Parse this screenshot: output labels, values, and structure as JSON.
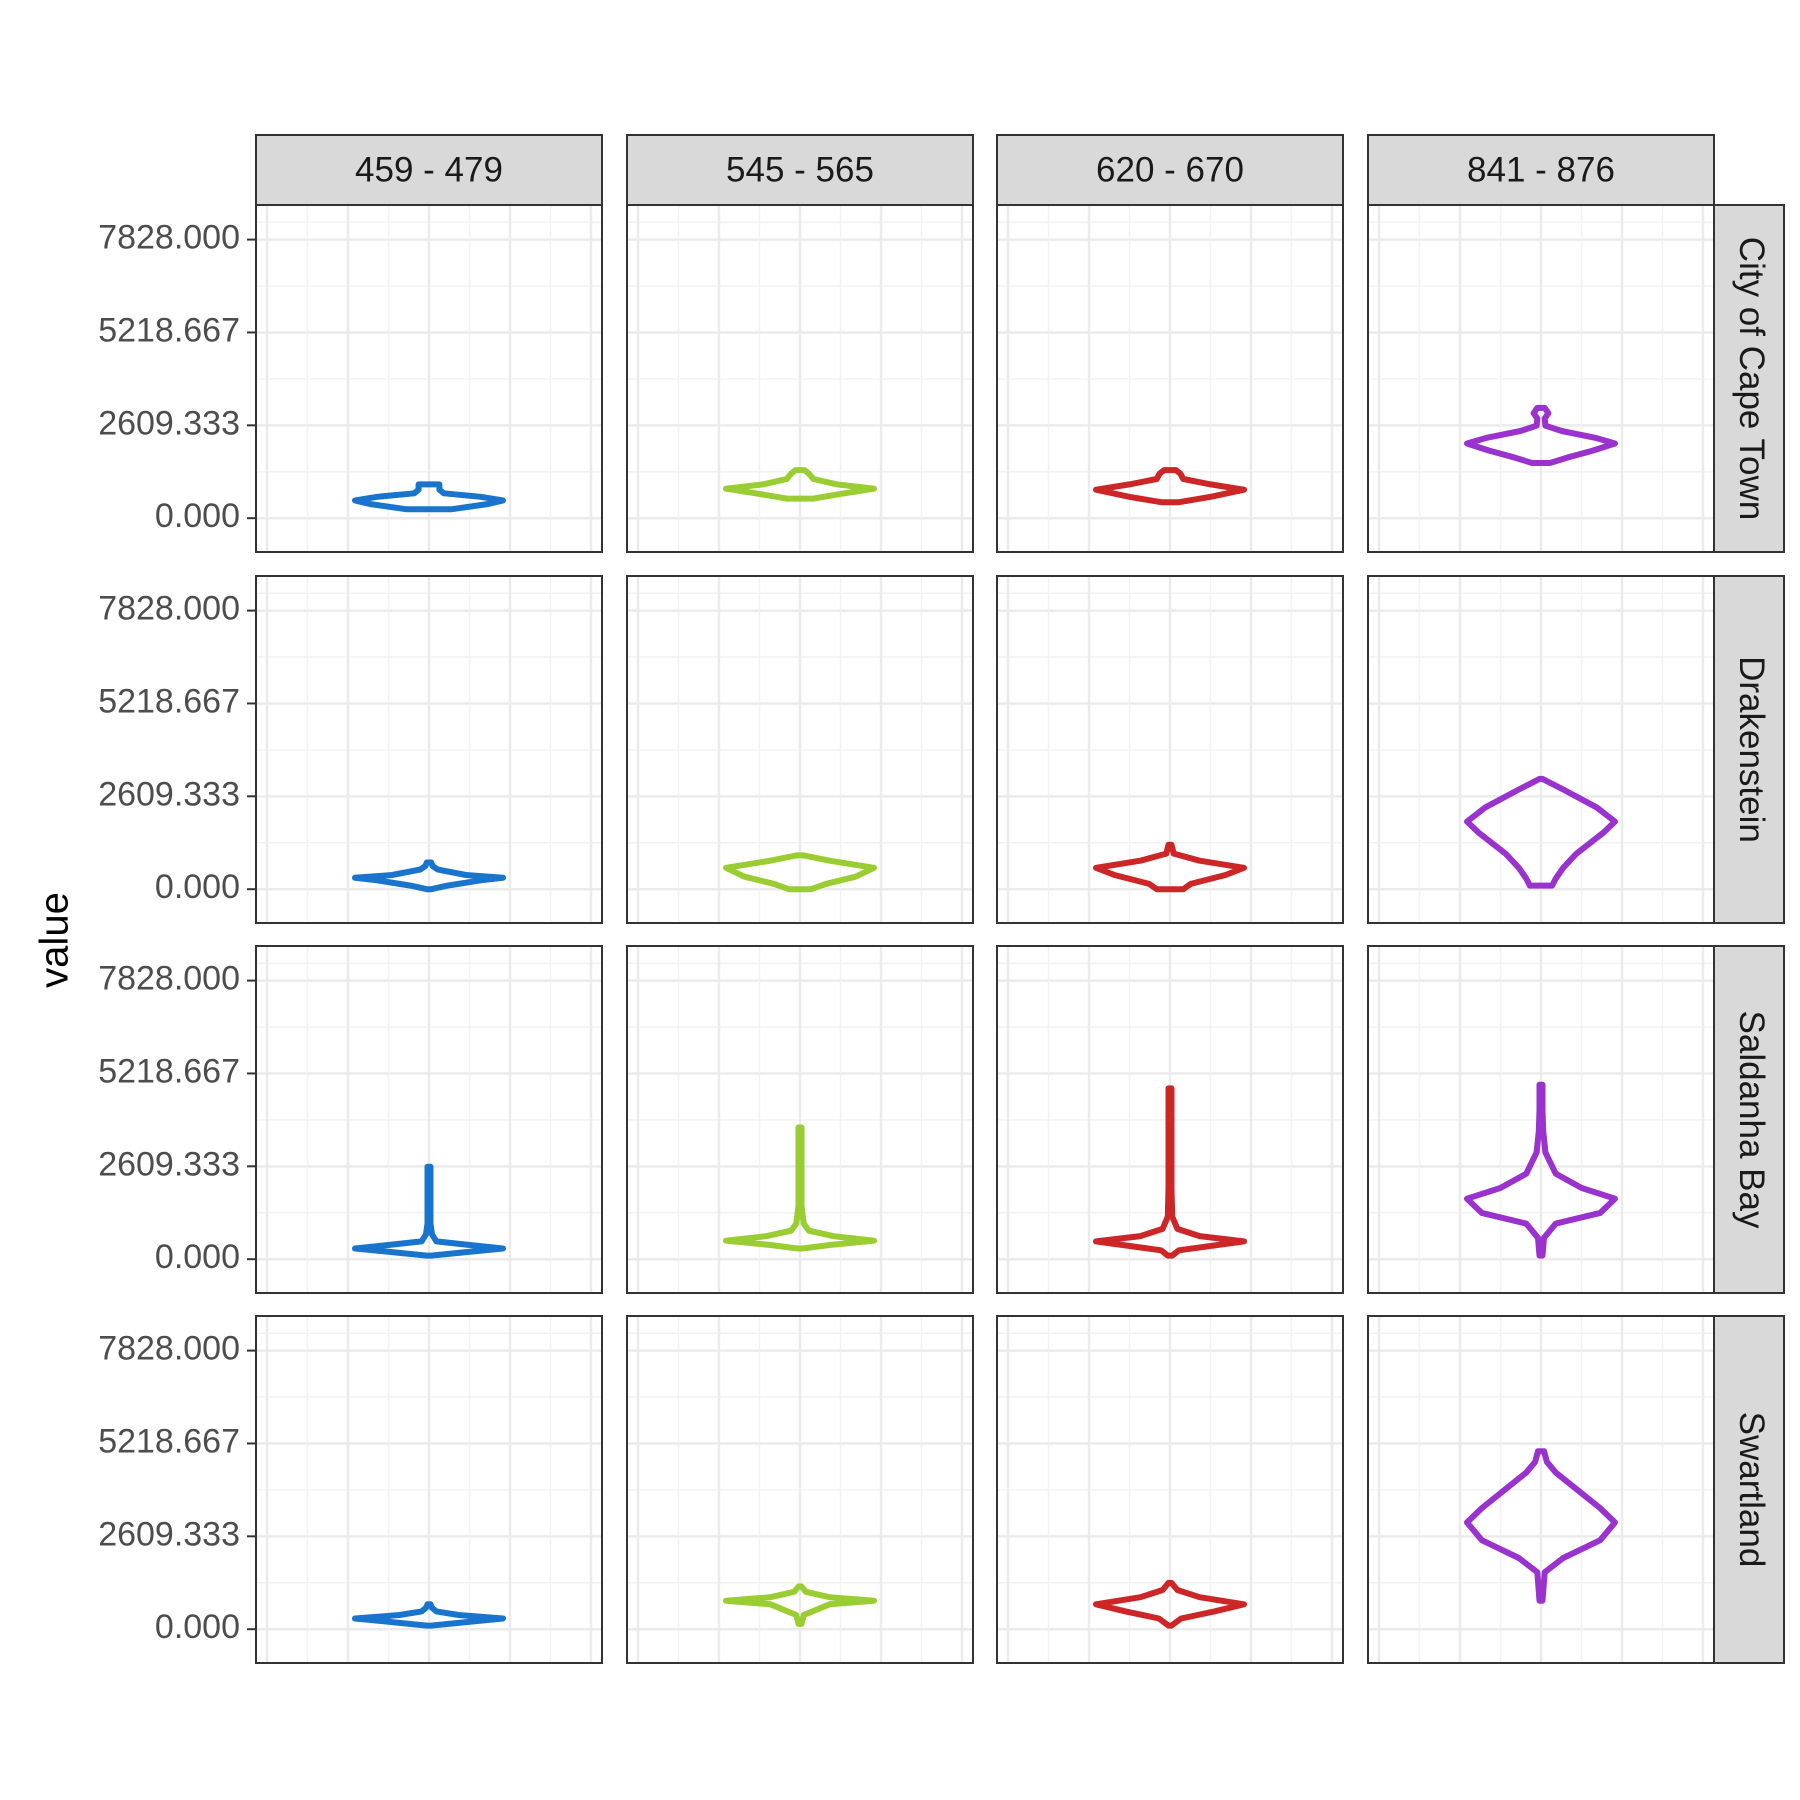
{
  "chart_data": {
    "type": "violin",
    "ylabel": "value",
    "y_ticks": [
      "0.000",
      "2609.333",
      "5218.667",
      "7828.000"
    ],
    "y_tick_values": [
      0,
      2609.333,
      5218.667,
      7828
    ],
    "ylim": [
      -950,
      8800
    ],
    "grid": true,
    "columns": [
      "459 - 479",
      "545 - 565",
      "620 - 670",
      "841 - 876"
    ],
    "rows": [
      "City of Cape Town",
      "Drakenstein",
      "Saldanha Bay",
      "Swartland"
    ],
    "column_colors": [
      "#1874CD",
      "#9ACD32",
      "#CD2626",
      "#9A32CD"
    ],
    "violins": [
      [
        {
          "bottom": 250,
          "top": 950,
          "points": [
            [
              250,
              0.3
            ],
            [
              400,
              0.8
            ],
            [
              500,
              1.0
            ],
            [
              600,
              0.7
            ],
            [
              700,
              0.2
            ],
            [
              800,
              0.14
            ],
            [
              950,
              0.14
            ]
          ]
        },
        {
          "bottom": 550,
          "top": 1350,
          "points": [
            [
              550,
              0.18
            ],
            [
              700,
              0.6
            ],
            [
              830,
              1.0
            ],
            [
              950,
              0.5
            ],
            [
              1100,
              0.18
            ],
            [
              1250,
              0.12
            ],
            [
              1350,
              0.06
            ]
          ]
        },
        {
          "bottom": 450,
          "top": 1350,
          "points": [
            [
              450,
              0.12
            ],
            [
              600,
              0.55
            ],
            [
              800,
              1.0
            ],
            [
              950,
              0.55
            ],
            [
              1100,
              0.18
            ],
            [
              1250,
              0.14
            ],
            [
              1350,
              0.08
            ]
          ]
        },
        {
          "bottom": 1550,
          "top": 3100,
          "points": [
            [
              1550,
              0.12
            ],
            [
              1700,
              0.35
            ],
            [
              1900,
              0.7
            ],
            [
              2100,
              1.0
            ],
            [
              2250,
              0.75
            ],
            [
              2450,
              0.28
            ],
            [
              2600,
              0.06
            ],
            [
              2800,
              0.05
            ],
            [
              2950,
              0.1
            ],
            [
              3100,
              0.05
            ]
          ]
        }
      ],
      [
        {
          "bottom": 0,
          "top": 750,
          "points": [
            [
              0,
              0.03
            ],
            [
              100,
              0.25
            ],
            [
              250,
              0.7
            ],
            [
              320,
              1.0
            ],
            [
              400,
              0.5
            ],
            [
              550,
              0.12
            ],
            [
              650,
              0.05
            ],
            [
              750,
              0.03
            ]
          ]
        },
        {
          "bottom": 0,
          "top": 950,
          "points": [
            [
              0,
              0.15
            ],
            [
              150,
              0.35
            ],
            [
              350,
              0.75
            ],
            [
              600,
              1.0
            ],
            [
              800,
              0.4
            ],
            [
              950,
              0.05
            ]
          ]
        },
        {
          "bottom": 0,
          "top": 1250,
          "points": [
            [
              0,
              0.18
            ],
            [
              150,
              0.28
            ],
            [
              400,
              0.75
            ],
            [
              600,
              1.0
            ],
            [
              800,
              0.4
            ],
            [
              1000,
              0.05
            ],
            [
              1250,
              0.02
            ]
          ]
        },
        {
          "bottom": 100,
          "top": 3100,
          "points": [
            [
              100,
              0.15
            ],
            [
              300,
              0.2
            ],
            [
              600,
              0.3
            ],
            [
              1000,
              0.48
            ],
            [
              1600,
              0.85
            ],
            [
              1900,
              1.0
            ],
            [
              2300,
              0.75
            ],
            [
              2800,
              0.3
            ],
            [
              3100,
              0.02
            ]
          ]
        }
      ],
      [
        {
          "bottom": 100,
          "top": 2600,
          "points": [
            [
              100,
              0.03
            ],
            [
              200,
              0.5
            ],
            [
              300,
              1.0
            ],
            [
              400,
              0.55
            ],
            [
              500,
              0.1
            ],
            [
              700,
              0.04
            ],
            [
              1000,
              0.02
            ],
            [
              1500,
              0.02
            ],
            [
              2600,
              0.02
            ]
          ]
        },
        {
          "bottom": 300,
          "top": 3700,
          "points": [
            [
              300,
              0.03
            ],
            [
              400,
              0.4
            ],
            [
              520,
              1.0
            ],
            [
              650,
              0.45
            ],
            [
              800,
              0.12
            ],
            [
              1000,
              0.05
            ],
            [
              1500,
              0.02
            ],
            [
              2500,
              0.02
            ],
            [
              3700,
              0.02
            ]
          ]
        },
        {
          "bottom": 100,
          "top": 4800,
          "points": [
            [
              100,
              0.03
            ],
            [
              250,
              0.12
            ],
            [
              500,
              1.0
            ],
            [
              650,
              0.4
            ],
            [
              850,
              0.1
            ],
            [
              1200,
              0.03
            ],
            [
              2000,
              0.02
            ],
            [
              4800,
              0.02
            ]
          ]
        },
        {
          "bottom": 100,
          "top": 4900,
          "points": [
            [
              100,
              0.02
            ],
            [
              600,
              0.04
            ],
            [
              1000,
              0.2
            ],
            [
              1300,
              0.8
            ],
            [
              1700,
              1.0
            ],
            [
              2000,
              0.55
            ],
            [
              2400,
              0.2
            ],
            [
              3000,
              0.06
            ],
            [
              3600,
              0.03
            ],
            [
              4200,
              0.02
            ],
            [
              4900,
              0.02
            ]
          ]
        }
      ],
      [
        {
          "bottom": 100,
          "top": 700,
          "points": [
            [
              100,
              0.03
            ],
            [
              200,
              0.5
            ],
            [
              300,
              1.0
            ],
            [
              400,
              0.4
            ],
            [
              500,
              0.1
            ],
            [
              600,
              0.04
            ],
            [
              700,
              0.02
            ]
          ]
        },
        {
          "bottom": 150,
          "top": 1200,
          "points": [
            [
              150,
              0.02
            ],
            [
              400,
              0.05
            ],
            [
              700,
              0.4
            ],
            [
              800,
              1.0
            ],
            [
              900,
              0.4
            ],
            [
              1050,
              0.08
            ],
            [
              1200,
              0.02
            ]
          ]
        },
        {
          "bottom": 100,
          "top": 1300,
          "points": [
            [
              100,
              0.02
            ],
            [
              300,
              0.15
            ],
            [
              500,
              0.6
            ],
            [
              700,
              1.0
            ],
            [
              900,
              0.4
            ],
            [
              1100,
              0.1
            ],
            [
              1300,
              0.02
            ]
          ]
        },
        {
          "bottom": 800,
          "top": 5000,
          "points": [
            [
              800,
              0.02
            ],
            [
              1600,
              0.05
            ],
            [
              2000,
              0.3
            ],
            [
              2500,
              0.8
            ],
            [
              3000,
              1.0
            ],
            [
              3400,
              0.8
            ],
            [
              3900,
              0.5
            ],
            [
              4400,
              0.2
            ],
            [
              4700,
              0.08
            ],
            [
              5000,
              0.04
            ]
          ]
        }
      ]
    ]
  }
}
